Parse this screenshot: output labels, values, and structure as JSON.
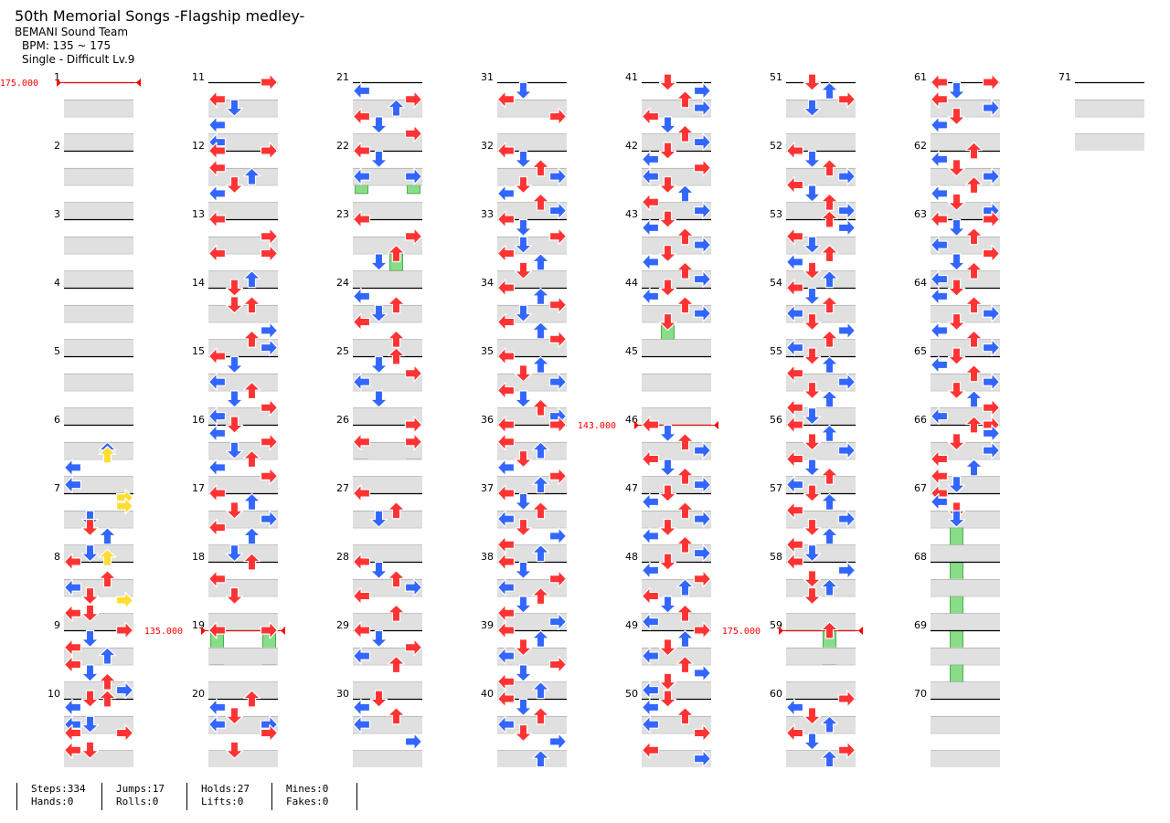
{
  "song": {
    "title": "50th Memorial Songs -Flagship medley-",
    "artist": "BEMANI Sound Team",
    "bpm": "BPM: 135 ~ 175",
    "difficulty": "Single - Difficult Lv.9"
  },
  "colors": {
    "lane_shade": "#e0e0e0",
    "measure_line": "#000000",
    "bpm_marker": "#ff0000",
    "note_quarter": "#ff3333",
    "note_eighth": "#3366ff",
    "note_sixteenth": "#ffdd33",
    "hold_body": "#88dd88"
  },
  "chart_info": {
    "measure_count": 71,
    "measures_per_column": 10
  },
  "bpm_changes": [
    {
      "measure": 1,
      "label": "175.000"
    },
    {
      "measure": 19,
      "label": "135.000"
    },
    {
      "measure": 46,
      "label": "143.000"
    },
    {
      "measure": 59,
      "label": "175.000"
    }
  ],
  "stats": [
    {
      "top": "Steps:334",
      "bottom": "Hands:0"
    },
    {
      "top": "Jumps:17",
      "bottom": "Rolls:0"
    },
    {
      "top": "Holds:27",
      "bottom": "Lifts:0"
    },
    {
      "top": "Mines:0",
      "bottom": "Fakes:0"
    }
  ],
  "notes": {
    "1": "",
    "2": "",
    "3": "",
    "4": "",
    "5": "",
    "6": "0000,0000,0000,0000,0000,0000,0010,0010,0000,0000,1000,0000,0000,0000,1000,0000",
    "7": "0000,0001,0000,0001,0000,0000,0100,0000,0100,0000,0010,0000,0000,0000,0100,0010",
    "8": "1000,0000,0000,0000,0010,0000,1000,0000,0100,0001,0000,0000,1100,0000,0000,0000",
    "9": "0001,0000,0100,0000,1000,0000,0010,0000,1000,0000,0100,0000,0010,0000,0001,0000",
    "10": "0110,0000,1000,0000,0000,0000,1100,0000,1001,0000,0000,0000,1100,0000,0000,0000",
    "11": "0001,0000,0000,0000,1000,0000,0100,0000,0000,0000,1000,0000,0000,0000,1000,0000",
    "12": "2001,0000,0000,0000,1000,0000,0010,0000,0100,0000,1000,0000,0000,0000,0000,0000",
    "13": "1000,0000,0000,0000,0001,0000,0000,0000,1001,0000,0000,0000,0000,0000,0010,0000",
    "14": "0100,0000,0000,0000,0110,0000,0000,0000,0000,0000,0001,0000,0010,0000,0001,0000",
    "15": "1000,0000,0100,0000,0000,0000,1000,0000,0010,0000,0100,0000,0001,0000,1000,0000",
    "16": "0100,0000,1000,0000,0001,0000,0100,0000,0010,0000,1000,0000,0001,0000,0000,0000",
    "17": "1000,0000,0010,0000,0100,0000,0001,0000,1000,0000,0010,0000,0000,0000,0100,0000",
    "18": "0010,0000,0000,0000,1000,0000,0000,0000,0100,0000,0000,0000,0000,0000,0000,0000",
    "19": "2002,0000,0000,0000,0000,0000,0000,0000,3003,0000,0000,0000,0000,0000,0000,0000",
    "20": "0010,0000,1000,0000,0100,0000,1001,0000,0001,0000,0000,0000,0100,0000,0000,0000",
    "21": "0000,0000,1000,0000,0001,0000,0010,0000,1000,0000,0100,0000,0001,0000,0000,0000",
    "22": "1000,0000,0100,0000,0000,0000,2002,0000,0000,0000,3003,0000,0000,0000,0000,0000",
    "23": "2000,0000,0000,0000,0001,0000,0000,0000,0020,0000,0100,0000,0030,0000,0000,0000",
    "24": "0000,0000,1000,0000,0010,0000,0100,0000,1000,0000,0000,0000,0010,0000,0000,0000",
    "25": "0010,0000,0100,0000,0001,0000,1000,0000,0000,0000,0100,0000,0000,0000,0000,0000",
    "26": "0001,0000,0000,0000,2002,0000,0000,0000,3003,0000,0000,0000,0000,0000,0000,0000",
    "27": "2000,0000,0000,0000,0010,0000,0100,0000,0000,0000,0000,0000,0000,0000,0000,0000",
    "28": "1000,0000,0100,0000,0010,0000,0001,0000,1000,0000,0000,0000,0010,0000,0000,0000",
    "29": "1000,0000,0100,0000,0001,0000,1000,0000,0010,0000,0000,0000,0000,0000,0000,0000",
    "30": "0100,0000,1000,0000,0010,0000,1000,0000,0000,0000,0001,0000,0000,0000,0000,0000",
    "31": "0000,0000,0100,0000,1000,0000,0000,0000,0001,0000,0000,0000,0000,0000,0000,0000",
    "32": "1000,0000,0100,0000,0010,0000,0001,0000,0100,0000,1000,0000,0010,0000,0001,0000",
    "33": "1000,0000,0100,0000,0001,0000,0100,0000,1000,0000,0010,0000,0100,0000,0000,0000",
    "34": "2000,0000,0010,0000,0001,0000,0100,0000,1000,0000,0010,0000,0001,0000,0000,0000",
    "35": "1000,0000,0010,0000,0100,0000,0001,0000,1000,0000,0100,0000,0010,0000,0001,0000",
    "36": "1001,0000,0000,0000,1000,0000,0010,0000,0100,0000,1000,0000,0001,0000,0010,0000",
    "37": "1000,0000,0100,0000,0010,0000,1000,0000,0100,0000,0001,0000,1000,0000,0010,0000",
    "38": "1000,0000,0100,0000,0001,0000,1000,0000,0010,0000,0100,0000,1000,0000,0001,0000",
    "39": "1000,0000,0010,0000,0100,0000,1000,0000,0001,0000,0100,0000,1000,0000,0010,0000",
    "40": "1000,0000,0100,0000,0010,0000,1000,0000,0100,0000,0001,0000,0000,0000,0010,0000",
    "41": "0100,0000,0001,0000,0010,0000,0001,0000,1000,0000,0100,0000,0010,0000,0001,0000",
    "42": "0100,0000,1000,0000,0001,0000,1000,0000,0100,0000,0010,0000,1000,0000,0001,0000",
    "43": "0100,0000,1000,0000,0010,0000,0001,0000,0100,0000,1000,0000,0010,0000,0001,0000",
    "44": "0100,0000,1000,0000,0010,0000,0001,0000,0200,0000,0000,0000,0000,0000,0000,0000",
    "45": "0300,0000,0000,0000,0000,0000,0000,0000,0000,0000,0000,0000,0000,0000,0000,0000",
    "46": "1000,0000,0100,0000,0010,0000,0001,0000,1000,0000,0100,0000,0010,0000,0001,0000",
    "47": "0100,0000,1000,0000,0010,0000,0001,0000,0100,0000,1000,0000,0010,0000,0001,0000",
    "48": "0100,0000,1000,0000,0001,0000,0010,0000,1000,0000,0100,0000,0010,0000,1000,0000",
    "49": "0001,0000,0010,0000,0100,0000,1000,0000,0010,0000,0001,0000,0100,0000,1000,0000",
    "50": "0100,0000,1000,0000,0010,0000,1000,0000,0001,0000,0000,0000,1000,0000,0001,0000",
    "51": "0100,0000,0010,0000,0001,0000,0100,0000,0000,0000,0000,0000,0000,0000,0000,0000",
    "52": "1000,0000,0100,0000,0010,0000,0001,0000,1000,0000,0100,0000,0010,0000,0001,0000",
    "53": "0010,0000,0001,0000,1000,0000,0100,0000,0010,0000,1000,0000,0100,0000,0010,0000",
    "54": "1000,0000,0100,0000,0010,0000,1000,0000,0100,0000,0001,0000,0010,0000,1000,0000",
    "55": "0100,0000,0010,0000,1000,0000,0001,0000,0100,0000,0010,0000,1000,0000,0100,0000",
    "56": "1000,0000,0010,0000,0100,0000,0001,0000,1000,0000,0100,0000,0010,0000,1000,0000",
    "57": "0100,0000,0010,0000,1000,0000,0001,0000,0100,0000,0010,0000,1000,0000,0100,0000",
    "58": "1000,0000,0001,0000,0100,0000,0010,0000,0200,0000,0000,0000,0000,0000,0000,0000",
    "59": "0020,0000,0000,0000,0000,0000,0000,0000,0030,0000,0000,0000,0000,0000,0000,0000",
    "60": "0001,0000,1000,0000,0100,0000,0010,0000,1000,0000,0100,0000,0001,0000,0010,0000",
    "61": "1001,0000,0100,0000,1000,0000,0001,0000,0100,0000,1000,0000,0000,0000,0000,0000",
    "62": "0010,0000,1000,0000,0100,0000,0001,0000,0010,0000,1000,0000,0100,0000,0001,0000",
    "63": "1001,0000,0100,0000,0010,0000,1000,0000,0001,0000,0100,0000,0010,0000,1000,0000",
    "64": "0100,0000,1000,0000,0010,0000,0001,0000,0100,0000,1000,0000,0010,0000,0001,0000",
    "65": "0100,0000,1000,0000,0010,0000,0001,0000,0100,0000,0010,0000,0001,0000,1000,0000",
    "66": "0011,0000,0001,0000,0100,0000,0001,0000,1000,0000,0010,0000,1000,0000,0100,0000",
    "67": "1000,0000,1000,0000,0100,0000,0200,0000,0000,0000,0000,0000,0000,0000,0000,0000",
    "68": "0000,0000,0000,0000,0000,0000,0000,0000,0000,0000,0000,0000,0000,0000,0000,0000",
    "69": "0000,0000,0000,0000,0000,0000,0000,0000,0000,0000,0000,0000,0000,0000,0000,0000",
    "70": "0300,0000,0000,0000,0000,0000,0000,0000,0000,0000,0000,0000,0000,0000,0000,0000",
    "71": ""
  }
}
